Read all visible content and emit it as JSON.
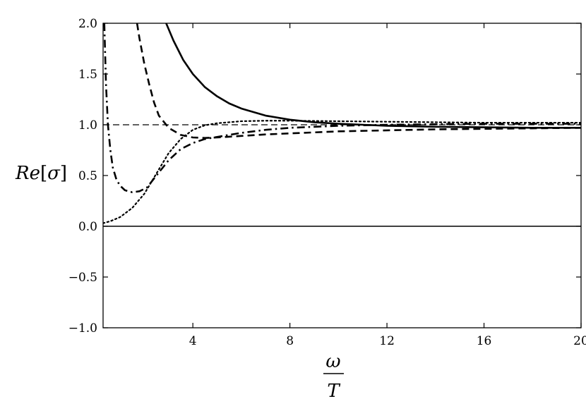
{
  "chart_data": {
    "type": "line",
    "title": "",
    "xlabel": {
      "numerator": "ω",
      "denominator": "T"
    },
    "ylabel": {
      "main": "Re",
      "bracket_open": "[",
      "symbol": "σ",
      "bracket_close": "]"
    },
    "xlim": [
      0.3,
      20
    ],
    "ylim": [
      -1.0,
      2.0
    ],
    "xticks": [
      4,
      8,
      12,
      16,
      20
    ],
    "yticks": [
      2.0,
      1.5,
      1.0,
      0.5,
      0.0,
      -0.5,
      -1.0
    ],
    "xtick_labels": [
      "4",
      "8",
      "12",
      "16",
      "20"
    ],
    "ytick_labels": [
      "2.0",
      "1.5",
      "1.0",
      "0.5",
      "0.0",
      "−0.5",
      "−1.0"
    ],
    "grid": false,
    "legend": "none",
    "reference_lines": [
      {
        "y": 1.0,
        "style": "dashed-thin"
      },
      {
        "y": 0.0,
        "style": "solid-thin"
      }
    ],
    "series": [
      {
        "style": "solid",
        "x": [
          2.9,
          3.2,
          3.6,
          4.0,
          4.5,
          5.0,
          5.5,
          6.0,
          7.0,
          8.0,
          9.0,
          10.0,
          11.0,
          12.0,
          14.0,
          16.0,
          18.0,
          20.0
        ],
        "y": [
          2.0,
          1.83,
          1.64,
          1.5,
          1.37,
          1.28,
          1.21,
          1.16,
          1.09,
          1.05,
          1.025,
          1.01,
          1.0,
          0.99,
          0.98,
          0.975,
          0.97,
          0.97
        ]
      },
      {
        "style": "dashed",
        "x": [
          1.7,
          1.8,
          2.0,
          2.2,
          2.4,
          2.6,
          3.0,
          3.5,
          4.0,
          4.5,
          5.0,
          6.0,
          7.0,
          8.0,
          10.0,
          12.0,
          14.0,
          16.0,
          18.0,
          20.0
        ],
        "y": [
          2.0,
          1.85,
          1.6,
          1.4,
          1.22,
          1.09,
          0.97,
          0.9,
          0.875,
          0.87,
          0.875,
          0.89,
          0.905,
          0.915,
          0.935,
          0.945,
          0.955,
          0.96,
          0.965,
          0.97
        ]
      },
      {
        "style": "dashdot",
        "x": [
          0.35,
          0.42,
          0.5,
          0.6,
          0.7,
          0.85,
          1.0,
          1.2,
          1.5,
          1.8,
          2.1,
          2.5,
          3.0,
          3.5,
          4.0,
          4.5,
          5.0,
          6.0,
          7.0,
          8.0,
          10.0,
          12.0,
          14.0,
          16.0,
          18.0,
          20.0
        ],
        "y": [
          2.0,
          1.4,
          1.0,
          0.75,
          0.58,
          0.46,
          0.4,
          0.355,
          0.335,
          0.345,
          0.38,
          0.5,
          0.65,
          0.76,
          0.82,
          0.86,
          0.88,
          0.92,
          0.95,
          0.97,
          0.99,
          1.0,
          1.005,
          1.01,
          1.01,
          1.01
        ]
      },
      {
        "style": "dotted",
        "x": [
          0.3,
          0.6,
          1.0,
          1.5,
          2.0,
          2.5,
          3.0,
          3.5,
          4.0,
          4.5,
          5.0,
          6.0,
          7.0,
          8.0,
          10.0,
          12.0,
          14.0,
          16.0,
          18.0,
          20.0
        ],
        "y": [
          0.03,
          0.05,
          0.09,
          0.18,
          0.32,
          0.52,
          0.72,
          0.86,
          0.95,
          0.995,
          1.015,
          1.035,
          1.04,
          1.04,
          1.035,
          1.03,
          1.025,
          1.02,
          1.02,
          1.02
        ]
      }
    ]
  }
}
